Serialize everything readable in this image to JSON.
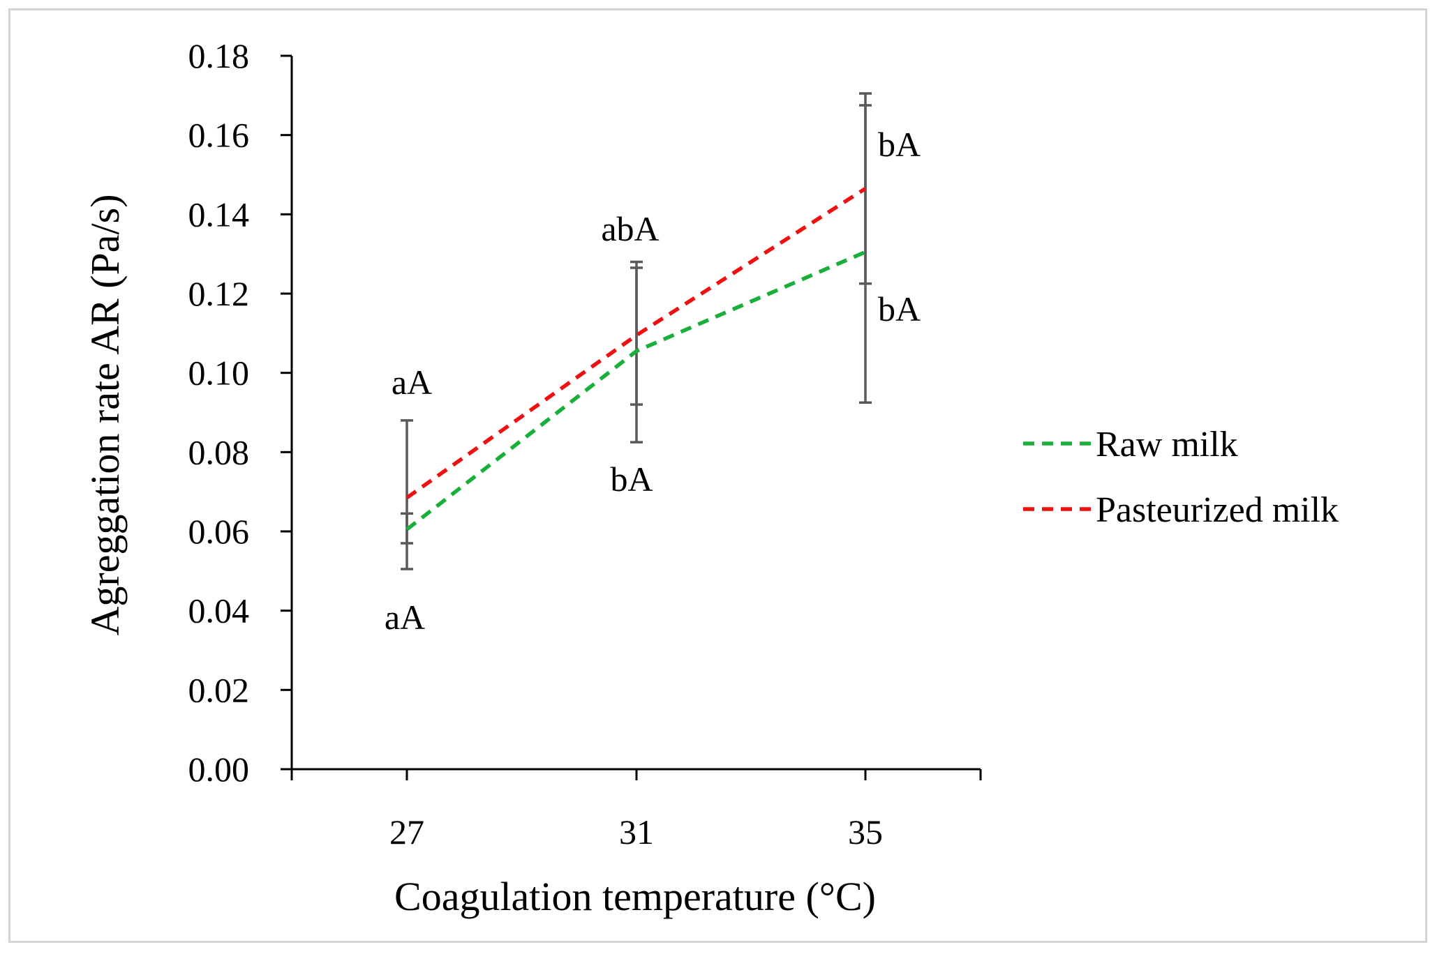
{
  "chart_data": {
    "type": "line",
    "title": "",
    "xlabel": "Coagulation temperature (°C)",
    "ylabel": "Agreggation rate AR (Pa/s)",
    "categories": [
      "27",
      "31",
      "35"
    ],
    "ylim": [
      0,
      0.18
    ],
    "ytick_labels": [
      "0.00",
      "0.02",
      "0.04",
      "0.06",
      "0.08",
      "0.10",
      "0.12",
      "0.14",
      "0.16",
      "0.18"
    ],
    "grid": false,
    "legend_position": "right",
    "series": [
      {
        "name": "Raw milk",
        "color": "#1aaf3a",
        "values": [
          0.0605,
          0.1055,
          0.1305
        ],
        "error_low": [
          0.0505,
          0.0825,
          0.0925
        ],
        "error_high": [
          0.0645,
          0.1265,
          0.1675
        ],
        "annotations": [
          "aA",
          "bA",
          "bA"
        ]
      },
      {
        "name": "Pasteurized milk",
        "color": "#ee1111",
        "values": [
          0.0685,
          0.1095,
          0.1465
        ],
        "error_low": [
          0.057,
          0.092,
          0.1225
        ],
        "error_high": [
          0.088,
          0.128,
          0.1705
        ],
        "annotations": [
          "aA",
          "abA",
          "bA"
        ]
      }
    ]
  }
}
